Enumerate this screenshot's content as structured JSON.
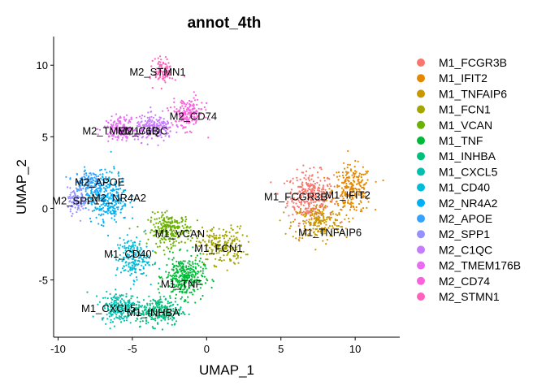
{
  "chart_data": {
    "type": "scatter",
    "title": "annot_4th",
    "xlabel": "UMAP_1",
    "ylabel": "UMAP_2",
    "xlim": [
      -10.3,
      13.0
    ],
    "ylim": [
      -9.0,
      12.0
    ],
    "xticks": [
      -10,
      -5,
      0,
      5,
      10
    ],
    "yticks": [
      -5,
      0,
      5,
      10
    ],
    "grid": false,
    "legend_position": "right",
    "series": [
      {
        "name": "M1_FCGR3B",
        "color": "#F8766D",
        "center": [
          7.0,
          0.8
        ],
        "spread": [
          1.4,
          1.6
        ],
        "count": 320
      },
      {
        "name": "M1_IFIT2",
        "color": "#E58700",
        "center": [
          9.8,
          1.3
        ],
        "spread": [
          1.2,
          1.5
        ],
        "count": 240
      },
      {
        "name": "M1_TNFAIP6",
        "color": "#C99800",
        "center": [
          7.5,
          -1.0
        ],
        "spread": [
          1.6,
          1.2
        ],
        "count": 200
      },
      {
        "name": "M1_FCN1",
        "color": "#A3A500",
        "center": [
          1.0,
          -2.6
        ],
        "spread": [
          1.4,
          1.2
        ],
        "count": 200
      },
      {
        "name": "M1_VCAN",
        "color": "#6BB100",
        "center": [
          -2.5,
          -1.5
        ],
        "spread": [
          1.3,
          1.0
        ],
        "count": 250
      },
      {
        "name": "M1_TNF",
        "color": "#00BA38",
        "center": [
          -1.5,
          -4.8
        ],
        "spread": [
          1.2,
          1.3
        ],
        "count": 320
      },
      {
        "name": "M1_INHBA",
        "color": "#00BF7D",
        "center": [
          -3.2,
          -7.2
        ],
        "spread": [
          1.4,
          0.9
        ],
        "count": 250
      },
      {
        "name": "M1_CXCL5",
        "color": "#00C0AF",
        "center": [
          -5.8,
          -6.9
        ],
        "spread": [
          1.2,
          0.9
        ],
        "count": 230
      },
      {
        "name": "M1_CD40",
        "color": "#00BCD8",
        "center": [
          -5.0,
          -3.5
        ],
        "spread": [
          1.0,
          1.3
        ],
        "count": 200
      },
      {
        "name": "M2_NR4A2",
        "color": "#00B0F6",
        "center": [
          -6.7,
          0.8
        ],
        "spread": [
          1.3,
          1.6
        ],
        "count": 300
      },
      {
        "name": "M2_APOE",
        "color": "#35A2FF",
        "center": [
          -8.0,
          1.8
        ],
        "spread": [
          0.9,
          0.8
        ],
        "count": 130
      },
      {
        "name": "M2_SPP1",
        "color": "#9590FF",
        "center": [
          -8.7,
          0.5
        ],
        "spread": [
          0.6,
          0.8
        ],
        "count": 90
      },
      {
        "name": "M2_C1QC",
        "color": "#C77CFF",
        "center": [
          -3.5,
          5.6
        ],
        "spread": [
          1.2,
          0.8
        ],
        "count": 200
      },
      {
        "name": "M2_TMEM176B",
        "color": "#E76BF3",
        "center": [
          -5.8,
          5.6
        ],
        "spread": [
          1.0,
          0.7
        ],
        "count": 160
      },
      {
        "name": "M2_CD74",
        "color": "#FA62DB",
        "center": [
          -1.3,
          6.6
        ],
        "spread": [
          1.0,
          1.0
        ],
        "count": 180
      },
      {
        "name": "M2_STMN1",
        "color": "#FF62BC",
        "center": [
          -2.9,
          9.6
        ],
        "spread": [
          0.6,
          0.8
        ],
        "count": 110
      }
    ],
    "annotations": [
      {
        "text": "M2_STMN1",
        "x": -3.3,
        "y": 9.5
      },
      {
        "text": "M2_CD74",
        "x": -0.9,
        "y": 6.4
      },
      {
        "text": "M2_TMEM176B",
        "x": -5.8,
        "y": 5.4
      },
      {
        "text": "M2_C1QC",
        "x": -4.3,
        "y": 5.4
      },
      {
        "text": "M2_APOE",
        "x": -7.2,
        "y": 1.8
      },
      {
        "text": "M2_SPP1",
        "x": -8.8,
        "y": 0.5
      },
      {
        "text": "M2_NR4A2",
        "x": -5.9,
        "y": 0.7
      },
      {
        "text": "M1_VCAN",
        "x": -1.8,
        "y": -1.8
      },
      {
        "text": "M1_FCN1",
        "x": 0.8,
        "y": -2.8
      },
      {
        "text": "M1_CD40",
        "x": -5.3,
        "y": -3.2
      },
      {
        "text": "M1_TNF",
        "x": -1.7,
        "y": -5.3
      },
      {
        "text": "M1_CXCL5",
        "x": -6.6,
        "y": -7.0
      },
      {
        "text": "M1_INHBA",
        "x": -3.6,
        "y": -7.3
      },
      {
        "text": "M1_FCGR3B",
        "x": 6.0,
        "y": 0.8
      },
      {
        "text": "M1_IFIT2",
        "x": 9.5,
        "y": 0.9
      },
      {
        "text": "M1_TNFAIP6",
        "x": 8.3,
        "y": -1.7
      }
    ]
  }
}
